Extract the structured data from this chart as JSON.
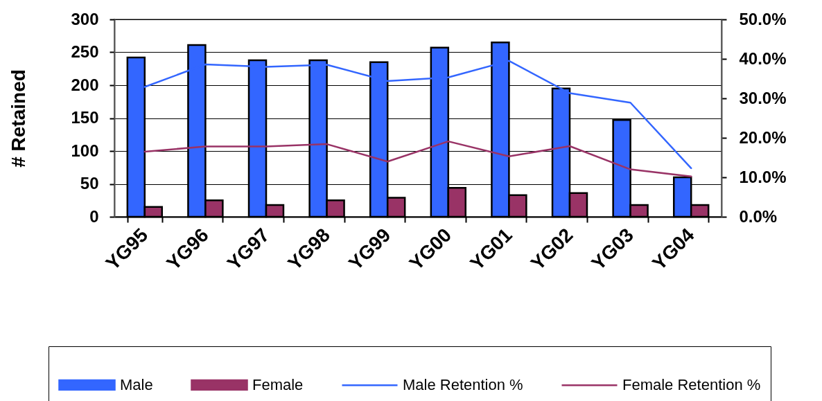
{
  "chart_data": {
    "type": "bar",
    "ylabel": "# Retained",
    "categories": [
      "YG95",
      "YG96",
      "YG97",
      "YG98",
      "YG99",
      "YG00",
      "YG01",
      "YG02",
      "YG03",
      "YG04"
    ],
    "ylim": [
      0,
      300
    ],
    "yticks": [
      0,
      50,
      100,
      150,
      200,
      250,
      300
    ],
    "y2lim": [
      0,
      50
    ],
    "y2ticks": [
      {
        "value": 0,
        "label": "0.0%"
      },
      {
        "value": 10,
        "label": "10.0%"
      },
      {
        "value": 20,
        "label": "20.0%"
      },
      {
        "value": 30,
        "label": "30.0%"
      },
      {
        "value": 40,
        "label": "40.0%"
      },
      {
        "value": 50,
        "label": "50.0%"
      }
    ],
    "grid": "y",
    "legend": "bottom",
    "series": [
      {
        "name": "Male",
        "color": "#3366ff",
        "values": [
          242,
          261,
          238,
          238,
          235,
          257,
          265,
          195,
          147,
          60
        ]
      },
      {
        "name": "Female",
        "color": "#993366",
        "values": [
          15,
          25,
          18,
          25,
          29,
          44,
          33,
          36,
          18,
          18
        ]
      },
      {
        "name": "Male Retention %",
        "type": "line",
        "axis": "y2",
        "color": "#3366ff",
        "values": [
          32.9,
          38.6,
          38.0,
          38.5,
          34.4,
          35.3,
          39.5,
          31.3,
          28.9,
          12.3
        ]
      },
      {
        "name": "Female Retention %",
        "type": "line",
        "axis": "y2",
        "color": "#993366",
        "values": [
          16.5,
          17.8,
          17.8,
          18.4,
          14.0,
          19.1,
          15.3,
          17.9,
          12.0,
          10.2
        ]
      }
    ]
  }
}
